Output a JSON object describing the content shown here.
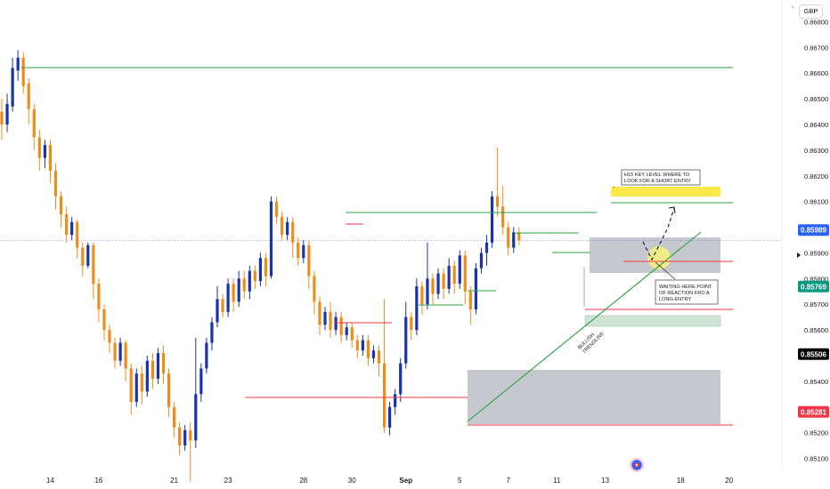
{
  "currency": "GBP",
  "chart_data": {
    "type": "candlestick",
    "ylim": [
      0.8505,
      0.8685
    ],
    "y_ticks": [
      "0.86800",
      "0.86700",
      "0.86600",
      "0.86500",
      "0.86400",
      "0.86300",
      "0.86200",
      "0.86100",
      "0.85900",
      "0.85800",
      "0.85700",
      "0.85600",
      "0.85400",
      "0.85200",
      "0.85100"
    ],
    "x_ticks": [
      "14",
      "16",
      "21",
      "23",
      "28",
      "30",
      "Sep",
      "5",
      "7",
      "11",
      "13",
      "18",
      "20"
    ],
    "price_badges": [
      {
        "text": "0.85989",
        "color": "#2962ff"
      },
      {
        "text": "0.85769",
        "color": "#089981"
      },
      {
        "text": "0.85506",
        "color": "#000000"
      },
      {
        "text": "0.85281",
        "color": "#f23645"
      }
    ],
    "annotations": [
      {
        "text": [
          "H15 KEY LEVEL WHERE TO",
          "LOOK FOR A SHORT ENTRY"
        ]
      },
      {
        "text": [
          "WAITING HERE POINT",
          "OF REACTION FRO A",
          "LONG ENTRY"
        ]
      },
      {
        "text": [
          "BULLISH",
          "TRENDLINE"
        ]
      }
    ],
    "candles": [
      [
        0.8645,
        0.864,
        0.865,
        0.8634
      ],
      [
        0.864,
        0.8648,
        0.8652,
        0.8637
      ],
      [
        0.8647,
        0.8662,
        0.8666,
        0.8645
      ],
      [
        0.8661,
        0.8666,
        0.8669,
        0.8657
      ],
      [
        0.8666,
        0.8655,
        0.8668,
        0.8652
      ],
      [
        0.8656,
        0.8646,
        0.8658,
        0.864
      ],
      [
        0.8646,
        0.8635,
        0.8648,
        0.863
      ],
      [
        0.8635,
        0.8627,
        0.8638,
        0.8622
      ],
      [
        0.8627,
        0.8632,
        0.8634,
        0.8623
      ],
      [
        0.8632,
        0.8622,
        0.8634,
        0.8617
      ],
      [
        0.8622,
        0.8612,
        0.8625,
        0.8607
      ],
      [
        0.8612,
        0.8605,
        0.8614,
        0.86
      ],
      [
        0.8605,
        0.8597,
        0.8608,
        0.8594
      ],
      [
        0.8597,
        0.8602,
        0.8604,
        0.8595
      ],
      [
        0.8602,
        0.8592,
        0.8603,
        0.8588
      ],
      [
        0.8592,
        0.8585,
        0.8594,
        0.8581
      ],
      [
        0.8585,
        0.8593,
        0.8594,
        0.8584
      ],
      [
        0.8593,
        0.8578,
        0.8594,
        0.8572
      ],
      [
        0.8578,
        0.8568,
        0.858,
        0.8563
      ],
      [
        0.8568,
        0.856,
        0.857,
        0.8556
      ],
      [
        0.856,
        0.8555,
        0.8562,
        0.8551
      ],
      [
        0.8555,
        0.8548,
        0.8557,
        0.8545
      ],
      [
        0.8548,
        0.8555,
        0.8557,
        0.8546
      ],
      [
        0.8555,
        0.8545,
        0.8556,
        0.854
      ],
      [
        0.8545,
        0.8532,
        0.8547,
        0.8527
      ],
      [
        0.8532,
        0.8543,
        0.8545,
        0.853
      ],
      [
        0.8543,
        0.8536,
        0.8546,
        0.8531
      ],
      [
        0.8536,
        0.8548,
        0.855,
        0.8534
      ],
      [
        0.8548,
        0.8541,
        0.8551,
        0.8537
      ],
      [
        0.8541,
        0.8551,
        0.8553,
        0.8539
      ],
      [
        0.8551,
        0.8543,
        0.8554,
        0.8539
      ],
      [
        0.8543,
        0.853,
        0.8545,
        0.8526
      ],
      [
        0.853,
        0.8522,
        0.8532,
        0.8518
      ],
      [
        0.8522,
        0.8515,
        0.8524,
        0.8511
      ],
      [
        0.8515,
        0.8521,
        0.8523,
        0.8513
      ],
      [
        0.8521,
        0.8517,
        0.8524,
        0.8501
      ],
      [
        0.8517,
        0.8535,
        0.8557,
        0.8514
      ],
      [
        0.8535,
        0.8545,
        0.8547,
        0.8532
      ],
      [
        0.8545,
        0.8555,
        0.8557,
        0.8543
      ],
      [
        0.8555,
        0.8563,
        0.8565,
        0.8552
      ],
      [
        0.8563,
        0.8572,
        0.8577,
        0.8561
      ],
      [
        0.8572,
        0.8567,
        0.8574,
        0.8565
      ],
      [
        0.8567,
        0.8578,
        0.858,
        0.8565
      ],
      [
        0.8578,
        0.8571,
        0.858,
        0.8567
      ],
      [
        0.8571,
        0.858,
        0.8583,
        0.8569
      ],
      [
        0.858,
        0.8575,
        0.8583,
        0.8572
      ],
      [
        0.8575,
        0.8583,
        0.8585,
        0.8572
      ],
      [
        0.8583,
        0.8579,
        0.8585,
        0.8576
      ],
      [
        0.8579,
        0.8588,
        0.859,
        0.8577
      ],
      [
        0.8588,
        0.8581,
        0.859,
        0.8577
      ],
      [
        0.8581,
        0.861,
        0.8612,
        0.858
      ],
      [
        0.861,
        0.8604,
        0.8612,
        0.8601
      ],
      [
        0.8604,
        0.8597,
        0.8606,
        0.8595
      ],
      [
        0.8597,
        0.8602,
        0.8604,
        0.8595
      ],
      [
        0.8602,
        0.8594,
        0.8604,
        0.8588
      ],
      [
        0.8594,
        0.8588,
        0.8596,
        0.8585
      ],
      [
        0.8588,
        0.8593,
        0.8595,
        0.8586
      ],
      [
        0.8593,
        0.8581,
        0.8595,
        0.8576
      ],
      [
        0.8581,
        0.8571,
        0.8583,
        0.8566
      ],
      [
        0.8571,
        0.8562,
        0.8573,
        0.8558
      ],
      [
        0.8562,
        0.8567,
        0.8569,
        0.856
      ],
      [
        0.8567,
        0.856,
        0.8571,
        0.8557
      ],
      [
        0.856,
        0.8565,
        0.8567,
        0.8558
      ],
      [
        0.8565,
        0.8558,
        0.8567,
        0.8555
      ],
      [
        0.8558,
        0.8561,
        0.8563,
        0.8556
      ],
      [
        0.8561,
        0.8556,
        0.8563,
        0.8553
      ],
      [
        0.8556,
        0.8552,
        0.8558,
        0.8549
      ],
      [
        0.8552,
        0.8556,
        0.8558,
        0.855
      ],
      [
        0.8556,
        0.8549,
        0.8558,
        0.8546
      ],
      [
        0.8549,
        0.8552,
        0.8554,
        0.8547
      ],
      [
        0.8552,
        0.8547,
        0.8554,
        0.8542
      ],
      [
        0.8547,
        0.8522,
        0.8572,
        0.852
      ],
      [
        0.8522,
        0.853,
        0.8532,
        0.8519
      ],
      [
        0.853,
        0.8535,
        0.8537,
        0.8527
      ],
      [
        0.8535,
        0.8547,
        0.8549,
        0.8532
      ],
      [
        0.8547,
        0.8565,
        0.8571,
        0.8545
      ],
      [
        0.8565,
        0.856,
        0.8567,
        0.8556
      ],
      [
        0.856,
        0.8577,
        0.858,
        0.8558
      ],
      [
        0.8577,
        0.857,
        0.8579,
        0.8566
      ],
      [
        0.857,
        0.858,
        0.8594,
        0.8568
      ],
      [
        0.858,
        0.8574,
        0.8582,
        0.857
      ],
      [
        0.8574,
        0.8582,
        0.8584,
        0.8572
      ],
      [
        0.8582,
        0.8576,
        0.8584,
        0.8572
      ],
      [
        0.8576,
        0.8585,
        0.8588,
        0.8574
      ],
      [
        0.8585,
        0.8578,
        0.8587,
        0.8574
      ],
      [
        0.8578,
        0.8589,
        0.8591,
        0.8576
      ],
      [
        0.8589,
        0.8575,
        0.8591,
        0.857
      ],
      [
        0.8575,
        0.8568,
        0.8577,
        0.8562
      ],
      [
        0.8568,
        0.8584,
        0.8586,
        0.8566
      ],
      [
        0.8584,
        0.859,
        0.8592,
        0.8582
      ],
      [
        0.859,
        0.8594,
        0.8597,
        0.8585
      ],
      [
        0.8594,
        0.8612,
        0.8614,
        0.8592
      ],
      [
        0.8612,
        0.8608,
        0.8631,
        0.8604
      ],
      [
        0.8608,
        0.86,
        0.8616,
        0.8597
      ],
      [
        0.86,
        0.8592,
        0.8602,
        0.8589
      ],
      [
        0.8592,
        0.8598,
        0.86,
        0.859
      ],
      [
        0.8598,
        0.8595,
        0.86,
        0.8593
      ]
    ]
  }
}
